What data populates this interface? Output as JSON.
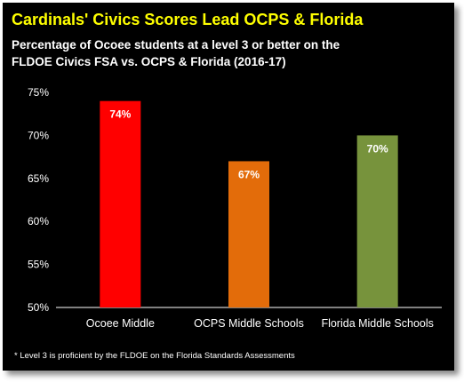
{
  "title": "Cardinals' Civics Scores Lead OCPS & Florida",
  "subtitle_line1": "Percentage of  Ocoee students at a level 3 or better on the",
  "subtitle_line2": "FLDOE Civics FSA vs. OCPS & Florida (2016-17)",
  "footnote": "* Level 3 is  proficient by the FLDOE on the Florida Standards Assessments",
  "colors": {
    "background": "#000000",
    "title": "#ffff00",
    "text": "#ffffff"
  },
  "chart_data": {
    "type": "bar",
    "categories": [
      "Ocoee Middle",
      "OCPS Middle Schools",
      "Florida Middle Schools"
    ],
    "values": [
      74,
      67,
      70
    ],
    "data_labels": [
      "74%",
      "67%",
      "70%"
    ],
    "bar_colors": [
      "#ff0000",
      "#e36c0a",
      "#77933c"
    ],
    "yticks": [
      50,
      55,
      60,
      65,
      70,
      75
    ],
    "ytick_labels": [
      "50%",
      "55%",
      "60%",
      "65%",
      "70%",
      "75%"
    ],
    "ylim": [
      50,
      75
    ],
    "grid": false,
    "legend": "none"
  }
}
